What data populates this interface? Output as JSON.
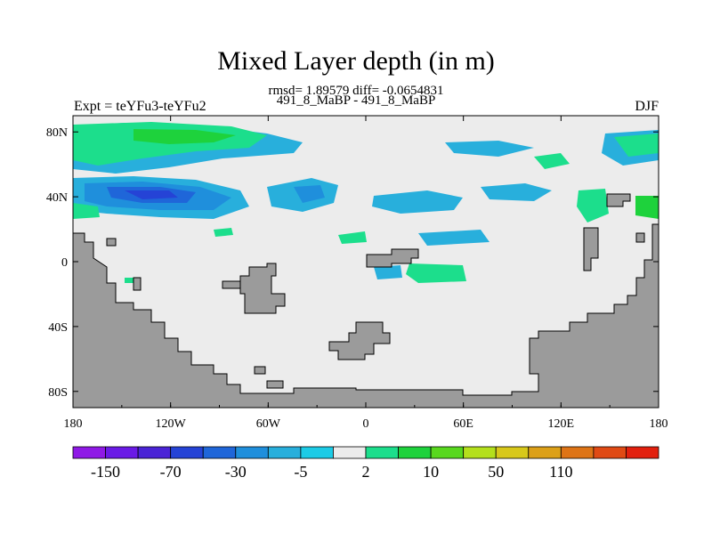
{
  "title": "Mixed Layer depth (in m)",
  "stats_line": "rmsd= 1.89579 diff= -0.0654831",
  "subtitle": "491_8_MaBP - 491_8_MaBP",
  "left_label": "Expt = teYFu3-teYFu2",
  "right_label": "DJF",
  "colors": {
    "land": "#9b9b9b",
    "ocean_neutral": "#ececec",
    "outline": "#000000"
  },
  "chart_data": {
    "type": "heatmap",
    "title": "Mixed Layer depth (in m)",
    "subtitle": "491_8_MaBP - 491_8_MaBP",
    "x_ticks": [
      "180",
      "120W",
      "60W",
      "0",
      "60E",
      "120E",
      "180"
    ],
    "x_tick_values": [
      -180,
      -120,
      -60,
      0,
      60,
      120,
      180
    ],
    "y_ticks": [
      "80N",
      "40N",
      "0",
      "40S",
      "80S"
    ],
    "y_tick_values": [
      80,
      40,
      0,
      -40,
      -80
    ],
    "xlim": [
      -180,
      180
    ],
    "ylim": [
      -90,
      90
    ],
    "colorbar": {
      "labels": [
        "-150",
        "-70",
        "-30",
        "-5",
        "2",
        "10",
        "50",
        "110"
      ],
      "colors": [
        "#8f19e6",
        "#6a1ae6",
        "#4a23d6",
        "#2543d6",
        "#1f66d9",
        "#1f8fdc",
        "#28afdc",
        "#1ccbe6",
        "#ececec",
        "#1cde8c",
        "#1ed23c",
        "#58d81e",
        "#b4e01c",
        "#d8c81a",
        "#dca018",
        "#de7416",
        "#e04a14",
        "#e2200e"
      ]
    }
  }
}
